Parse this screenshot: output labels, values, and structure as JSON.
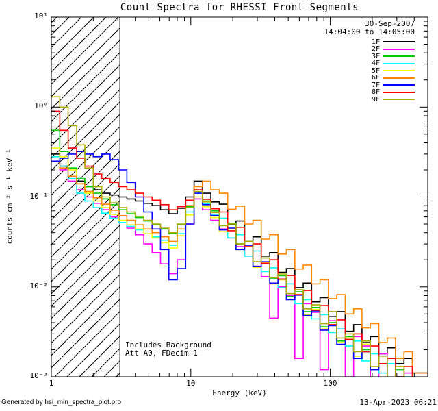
{
  "header": {
    "date": "30-Sep-2007",
    "time_range": "14:04:00 to 14:05:00"
  },
  "notes": {
    "line1": "Includes Background",
    "line2": "Att A0, FDecim 1"
  },
  "footer": {
    "left": "Generated by hsi_min_spectra_plot.pro",
    "right": "13-Apr-2023 06:21"
  },
  "chart_data": {
    "type": "line",
    "subtype": "step-histogram",
    "title": "Count Spectra for RHESSI Front Segments",
    "xlabel": "Energy (keV)",
    "ylabel": "counts cm⁻² s⁻¹ keV⁻¹",
    "x_scale": "log",
    "y_scale": "log",
    "xlim": [
      1,
      500
    ],
    "ylim": [
      0.001,
      10
    ],
    "x_ticks": [
      1,
      10,
      100
    ],
    "x_tick_labels": [
      "1",
      "10",
      "100"
    ],
    "y_ticks": [
      0.001,
      0.01,
      0.1,
      1,
      10
    ],
    "y_tick_labels": [
      "10⁻³",
      "10⁻²",
      "10⁻¹",
      "10⁰",
      "10¹"
    ],
    "grid": false,
    "legend_position": "top-right-inside",
    "hatched_region_kev": [
      1,
      3.1
    ],
    "energies": [
      1.0,
      1.15,
      1.32,
      1.52,
      1.74,
      2.0,
      2.3,
      2.64,
      3.03,
      3.48,
      4.0,
      4.6,
      5.28,
      6.06,
      6.96,
      8.0,
      9.19,
      10.56,
      12.13,
      13.93,
      16.0,
      18.4,
      21.1,
      24.3,
      27.9,
      32.0,
      36.8,
      42.2,
      48.5,
      55.7,
      64.0,
      73.5,
      84.4,
      97.0,
      111.4,
      128.0,
      147.0,
      168.9,
      194.0,
      222.9,
      256.0,
      294.1,
      337.8,
      388.0
    ],
    "series": [
      {
        "name": "1F",
        "color": "#000000",
        "values": [
          0.3,
          0.22,
          0.17,
          0.15,
          0.13,
          0.12,
          0.11,
          0.105,
          0.1,
          0.095,
          0.09,
          0.085,
          0.08,
          0.072,
          0.065,
          0.075,
          0.1,
          0.15,
          0.11,
          0.088,
          0.083,
          0.049,
          0.054,
          0.032,
          0.036,
          0.022,
          0.024,
          0.0145,
          0.016,
          0.0098,
          0.011,
          0.0068,
          0.0076,
          0.0047,
          0.0053,
          0.0032,
          0.0038,
          0.0024,
          0.0028,
          0.0018,
          0.0021,
          0.0014,
          0.0016,
          0.0011
        ]
      },
      {
        "name": "2F",
        "color": "#ff00ff",
        "values": [
          0.25,
          0.2,
          0.15,
          0.12,
          0.1,
          0.085,
          0.072,
          0.06,
          0.052,
          0.045,
          0.038,
          0.03,
          0.024,
          0.018,
          0.014,
          0.02,
          0.05,
          0.095,
          0.072,
          0.055,
          0.044,
          0.035,
          0.028,
          0.022,
          0.017,
          0.013,
          0.0045,
          0.01,
          0.008,
          0.0016,
          0.0065,
          0.0052,
          0.0012,
          0.0042,
          0.0034,
          0.001,
          0.0028,
          0.0022,
          0.0009,
          0.0018,
          0.0014,
          0.0006,
          0.0011,
          0.0009
        ]
      },
      {
        "name": "3F",
        "color": "#00cc00",
        "values": [
          0.55,
          0.32,
          0.21,
          0.16,
          0.13,
          0.11,
          0.095,
          0.082,
          0.072,
          0.065,
          0.059,
          0.054,
          0.049,
          0.044,
          0.039,
          0.049,
          0.078,
          0.12,
          0.09,
          0.07,
          0.048,
          0.051,
          0.03,
          0.032,
          0.019,
          0.021,
          0.0123,
          0.0133,
          0.0078,
          0.0088,
          0.0053,
          0.0059,
          0.0036,
          0.004,
          0.0025,
          0.0028,
          0.0017,
          0.002,
          0.0012,
          0.0014,
          0.00085,
          0.0012,
          0.00064,
          0.00075
        ]
      },
      {
        "name": "4F",
        "color": "#00ffff",
        "values": [
          0.28,
          0.22,
          0.16,
          0.11,
          0.09,
          0.076,
          0.066,
          0.058,
          0.052,
          0.047,
          0.043,
          0.039,
          0.036,
          0.033,
          0.029,
          0.039,
          0.068,
          0.11,
          0.084,
          0.064,
          0.058,
          0.035,
          0.038,
          0.022,
          0.025,
          0.0148,
          0.0163,
          0.0098,
          0.0108,
          0.0065,
          0.0072,
          0.0044,
          0.0049,
          0.0031,
          0.0034,
          0.0022,
          0.0025,
          0.0015,
          0.0018,
          0.0011,
          0.0014,
          0.00085,
          0.001,
          0.0007
        ]
      },
      {
        "name": "5F",
        "color": "#ffff00",
        "values": [
          0.35,
          0.28,
          0.2,
          0.14,
          0.11,
          0.09,
          0.076,
          0.064,
          0.055,
          0.049,
          0.044,
          0.039,
          0.035,
          0.031,
          0.027,
          0.037,
          0.063,
          0.1,
          0.078,
          0.059,
          0.041,
          0.044,
          0.026,
          0.028,
          0.0165,
          0.0185,
          0.0108,
          0.012,
          0.0072,
          0.0082,
          0.0049,
          0.0056,
          0.0034,
          0.0038,
          0.0024,
          0.0027,
          0.0017,
          0.0023,
          0.0012,
          0.0014,
          0.0009,
          0.0013,
          0.00068,
          0.0008
        ]
      },
      {
        "name": "6F",
        "color": "#ff8800",
        "values": [
          0.25,
          0.21,
          0.17,
          0.14,
          0.115,
          0.098,
          0.083,
          0.071,
          0.062,
          0.055,
          0.049,
          0.044,
          0.04,
          0.036,
          0.032,
          0.044,
          0.08,
          0.13,
          0.15,
          0.12,
          0.11,
          0.073,
          0.079,
          0.05,
          0.055,
          0.034,
          0.038,
          0.0232,
          0.026,
          0.0158,
          0.0175,
          0.0108,
          0.012,
          0.0074,
          0.0082,
          0.005,
          0.0057,
          0.0035,
          0.0039,
          0.0024,
          0.0027,
          0.0016,
          0.0019,
          0.0011
        ]
      },
      {
        "name": "7F",
        "color": "#0000ff",
        "values": [
          0.25,
          0.27,
          0.3,
          0.32,
          0.3,
          0.28,
          0.3,
          0.26,
          0.2,
          0.145,
          0.1,
          0.068,
          0.044,
          0.026,
          0.012,
          0.016,
          0.05,
          0.11,
          0.082,
          0.062,
          0.043,
          0.045,
          0.026,
          0.029,
          0.0168,
          0.019,
          0.011,
          0.0122,
          0.0072,
          0.0081,
          0.0048,
          0.0054,
          0.0033,
          0.0037,
          0.0023,
          0.0026,
          0.0016,
          0.0019,
          0.0012,
          0.0014,
          0.00085,
          0.001,
          0.00066,
          0.0008
        ]
      },
      {
        "name": "8F",
        "color": "#ff0000",
        "values": [
          0.9,
          0.55,
          0.35,
          0.27,
          0.22,
          0.18,
          0.16,
          0.145,
          0.13,
          0.12,
          0.11,
          0.1,
          0.092,
          0.082,
          0.072,
          0.078,
          0.092,
          0.12,
          0.094,
          0.074,
          0.068,
          0.042,
          0.046,
          0.028,
          0.03,
          0.0183,
          0.02,
          0.0122,
          0.0134,
          0.0082,
          0.0091,
          0.0055,
          0.0062,
          0.0038,
          0.0043,
          0.0026,
          0.003,
          0.0019,
          0.0022,
          0.0014,
          0.0016,
          0.001,
          0.0013,
          0.0008
        ]
      },
      {
        "name": "9F",
        "color": "#aaaa00",
        "values": [
          1.3,
          1.0,
          0.62,
          0.38,
          0.21,
          0.13,
          0.1,
          0.086,
          0.076,
          0.068,
          0.061,
          0.055,
          0.05,
          0.045,
          0.04,
          0.05,
          0.076,
          0.115,
          0.088,
          0.067,
          0.048,
          0.05,
          0.03,
          0.032,
          0.019,
          0.021,
          0.0127,
          0.0139,
          0.0084,
          0.0093,
          0.0057,
          0.0063,
          0.0039,
          0.0053,
          0.0027,
          0.003,
          0.0019,
          0.0025,
          0.0013,
          0.0017,
          0.00095,
          0.0013,
          0.0007,
          0.0009
        ]
      }
    ]
  }
}
